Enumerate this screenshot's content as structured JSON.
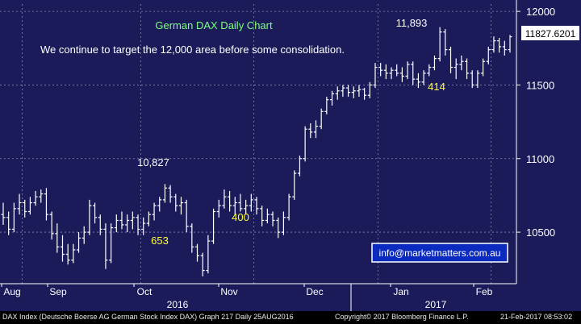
{
  "chart_data": {
    "type": "candlestick",
    "title": "German DAX Daily Chart",
    "subtitle": "We continue to target the 12,000 area before some consolidation.",
    "last_price": "11827.6201",
    "y_ticks": [
      10500,
      11000,
      11500,
      12000
    ],
    "ylim": [
      10150,
      12050
    ],
    "x_months": [
      "Aug",
      "Sep",
      "Oct",
      "Nov",
      "Dec",
      "Jan",
      "Feb"
    ],
    "x_years": [
      "2016",
      "2017"
    ],
    "annotations": [
      {
        "text": "10,827",
        "ref": "2016-10-20 high",
        "color": "#ffffff"
      },
      {
        "text": "653",
        "ref": "Oct swing low",
        "color": "#ffff33"
      },
      {
        "text": "400",
        "ref": "Nov swing low",
        "color": "#ffff33"
      },
      {
        "text": "11,893",
        "ref": "2017-01-26 high",
        "color": "#ffffff"
      },
      {
        "text": "414",
        "ref": "Jan pullback",
        "color": "#ffff33"
      }
    ],
    "watermark": "info@marketmatters.com.au",
    "grid": true,
    "colors": {
      "background": "#1b1b5a",
      "bars": "#ffffff",
      "grid": "#8a8ab0",
      "title": "#7fff7f",
      "annotation": "#ffff33"
    },
    "series": [
      {
        "values": [
          [
            10620,
            10700,
            10550,
            10600
          ],
          [
            10600,
            10640,
            10480,
            10520
          ],
          [
            10520,
            10700,
            10500,
            10660
          ],
          [
            10660,
            10760,
            10620,
            10700
          ],
          [
            10700,
            10720,
            10600,
            10640
          ],
          [
            10640,
            10740,
            10620,
            10700
          ],
          [
            10700,
            10780,
            10680,
            10740
          ],
          [
            10740,
            10790,
            10700,
            10760
          ],
          [
            10760,
            10800,
            10580,
            10620
          ],
          [
            10620,
            10640,
            10450,
            10490
          ],
          [
            10490,
            10560,
            10360,
            10400
          ],
          [
            10400,
            10480,
            10300,
            10350
          ],
          [
            10350,
            10420,
            10280,
            10310
          ],
          [
            10310,
            10420,
            10290,
            10380
          ],
          [
            10380,
            10500,
            10360,
            10460
          ],
          [
            10460,
            10540,
            10420,
            10500
          ],
          [
            10500,
            10720,
            10480,
            10680
          ],
          [
            10680,
            10700,
            10560,
            10600
          ],
          [
            10600,
            10620,
            10480,
            10520
          ],
          [
            10520,
            10560,
            10250,
            10310
          ],
          [
            10310,
            10560,
            10290,
            10530
          ],
          [
            10530,
            10620,
            10500,
            10580
          ],
          [
            10580,
            10640,
            10520,
            10550
          ],
          [
            10550,
            10620,
            10500,
            10580
          ],
          [
            10580,
            10640,
            10520,
            10600
          ],
          [
            10600,
            10620,
            10480,
            10520
          ],
          [
            10520,
            10600,
            10480,
            10560
          ],
          [
            10560,
            10640,
            10540,
            10620
          ],
          [
            10620,
            10700,
            10580,
            10680
          ],
          [
            10680,
            10740,
            10640,
            10720
          ],
          [
            10720,
            10827,
            10700,
            10800
          ],
          [
            10800,
            10820,
            10700,
            10740
          ],
          [
            10740,
            10760,
            10640,
            10680
          ],
          [
            10680,
            10740,
            10620,
            10700
          ],
          [
            10700,
            10720,
            10500,
            10540
          ],
          [
            10540,
            10560,
            10360,
            10400
          ],
          [
            10400,
            10420,
            10300,
            10340
          ],
          [
            10340,
            10360,
            10200,
            10240
          ],
          [
            10240,
            10480,
            10220,
            10440
          ],
          [
            10440,
            10660,
            10420,
            10640
          ],
          [
            10640,
            10720,
            10600,
            10680
          ],
          [
            10680,
            10790,
            10660,
            10740
          ],
          [
            10740,
            10780,
            10640,
            10680
          ],
          [
            10680,
            10740,
            10620,
            10700
          ],
          [
            10700,
            10760,
            10640,
            10660
          ],
          [
            10660,
            10720,
            10620,
            10680
          ],
          [
            10680,
            10760,
            10640,
            10720
          ],
          [
            10720,
            10740,
            10620,
            10660
          ],
          [
            10660,
            10680,
            10540,
            10580
          ],
          [
            10580,
            10660,
            10560,
            10620
          ],
          [
            10620,
            10640,
            10540,
            10580
          ],
          [
            10580,
            10600,
            10460,
            10500
          ],
          [
            10500,
            10640,
            10480,
            10600
          ],
          [
            10600,
            10760,
            10580,
            10740
          ],
          [
            10740,
            10920,
            10720,
            10900
          ],
          [
            10900,
            11020,
            10880,
            11000
          ],
          [
            11000,
            11220,
            10980,
            11200
          ],
          [
            11200,
            11240,
            11140,
            11180
          ],
          [
            11180,
            11260,
            11140,
            11220
          ],
          [
            11220,
            11340,
            11200,
            11320
          ],
          [
            11320,
            11420,
            11300,
            11400
          ],
          [
            11400,
            11460,
            11360,
            11440
          ],
          [
            11440,
            11490,
            11400,
            11460
          ],
          [
            11460,
            11500,
            11420,
            11480
          ],
          [
            11480,
            11500,
            11420,
            11450
          ],
          [
            11450,
            11490,
            11410,
            11460
          ],
          [
            11460,
            11500,
            11420,
            11470
          ],
          [
            11470,
            11480,
            11400,
            11430
          ],
          [
            11430,
            11520,
            11410,
            11500
          ],
          [
            11500,
            11650,
            11480,
            11620
          ],
          [
            11620,
            11650,
            11560,
            11600
          ],
          [
            11600,
            11640,
            11540,
            11580
          ],
          [
            11580,
            11620,
            11540,
            11600
          ],
          [
            11600,
            11640,
            11560,
            11580
          ],
          [
            11580,
            11620,
            11520,
            11560
          ],
          [
            11560,
            11660,
            11540,
            11640
          ],
          [
            11640,
            11660,
            11500,
            11540
          ],
          [
            11540,
            11580,
            11480,
            11520
          ],
          [
            11520,
            11600,
            11500,
            11580
          ],
          [
            11580,
            11640,
            11560,
            11620
          ],
          [
            11620,
            11700,
            11600,
            11680
          ],
          [
            11680,
            11893,
            11660,
            11860
          ],
          [
            11860,
            11880,
            11700,
            11740
          ],
          [
            11740,
            11760,
            11580,
            11620
          ],
          [
            11620,
            11680,
            11540,
            11640
          ],
          [
            11640,
            11700,
            11600,
            11660
          ],
          [
            11660,
            11680,
            11540,
            11580
          ],
          [
            11580,
            11600,
            11480,
            11500
          ],
          [
            11500,
            11600,
            11480,
            11580
          ],
          [
            11580,
            11680,
            11560,
            11660
          ],
          [
            11660,
            11760,
            11640,
            11740
          ],
          [
            11740,
            11830,
            11720,
            11800
          ],
          [
            11800,
            11820,
            11720,
            11760
          ],
          [
            11760,
            11800,
            11700,
            11740
          ],
          [
            11740,
            11840,
            11720,
            11827.62
          ]
        ]
      }
    ]
  },
  "footer": {
    "left": "DAX Index (Deutsche Boerse AG German Stock Index DAX) Graph 217  Daily 25AUG2016",
    "center": "Copyright© 2017 Bloomberg Finance L.P.",
    "right": "21-Feb-2017 08:53:02"
  }
}
